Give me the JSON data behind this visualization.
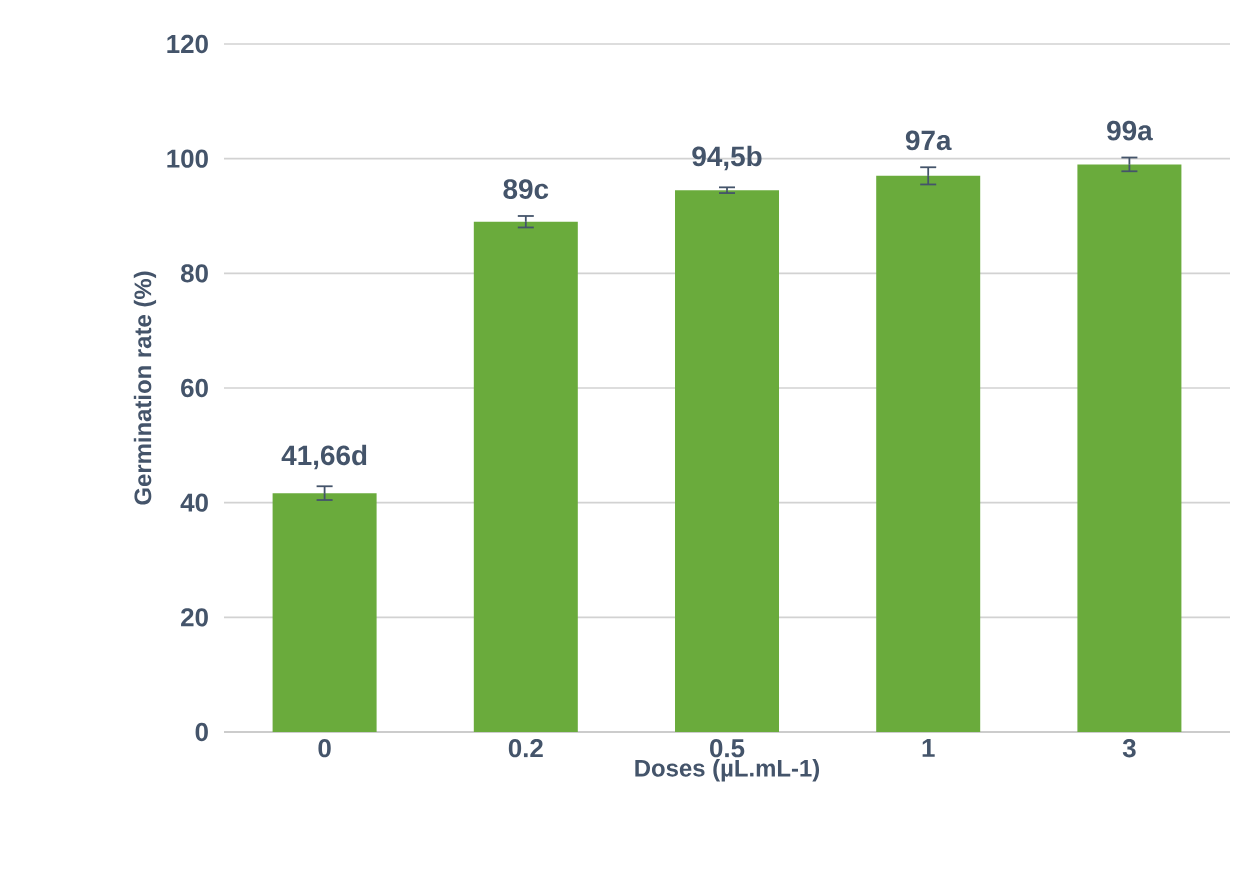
{
  "chart_data": {
    "type": "bar",
    "xlabel": "Doses (µL.mL-1)",
    "ylabel": "Germination rate (%)",
    "categories": [
      "0",
      "0.2",
      "0.5",
      "1",
      "3"
    ],
    "values": [
      41.66,
      89,
      94.5,
      97,
      99
    ],
    "errors": [
      1.2,
      1,
      0.5,
      1.5,
      1.2
    ],
    "value_labels": [
      "41,66d",
      "89c",
      "94,5b",
      "97a",
      "99a"
    ],
    "color": "#6aab3c",
    "ylim": [
      0,
      120
    ],
    "yticks": [
      0,
      20,
      40,
      60,
      80,
      100,
      120
    ],
    "grid": "y"
  }
}
